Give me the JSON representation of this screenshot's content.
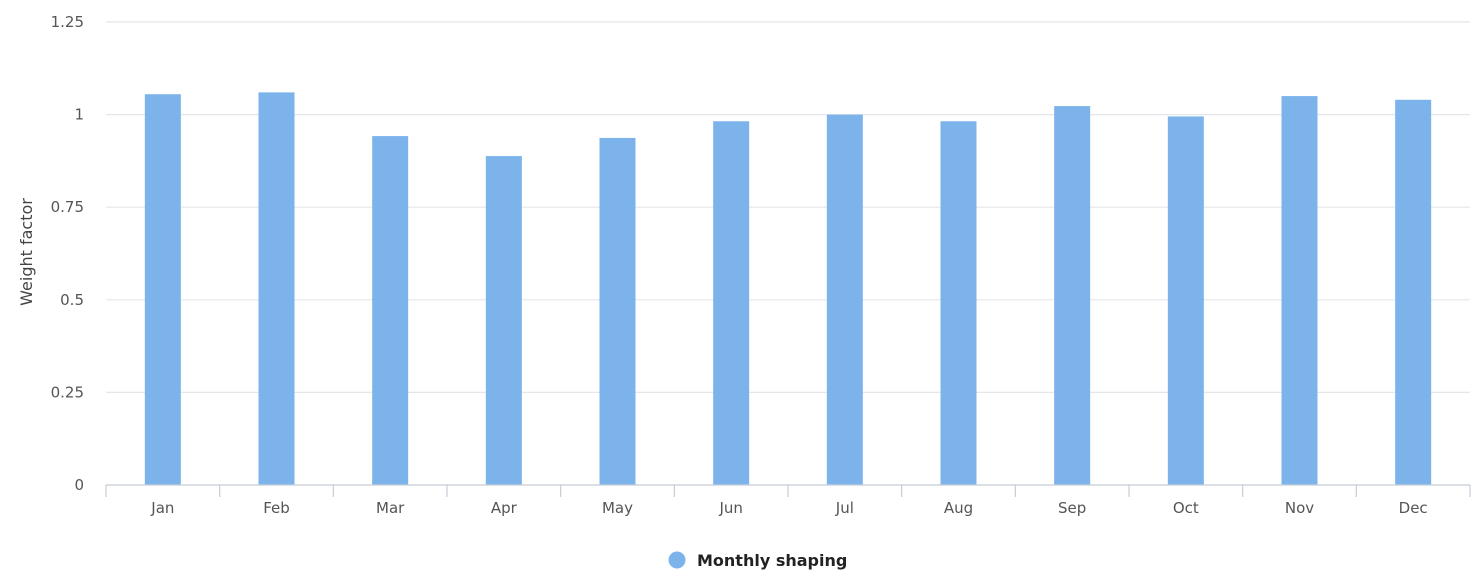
{
  "chart_data": {
    "type": "bar",
    "ylabel": "Weight factor",
    "ylim": [
      0,
      1.25
    ],
    "yticks": [
      "0",
      "0.25",
      "0.5",
      "0.75",
      "1",
      "1.25"
    ],
    "categories": [
      "Jan",
      "Feb",
      "Mar",
      "Apr",
      "May",
      "Jun",
      "Jul",
      "Aug",
      "Sep",
      "Oct",
      "Nov",
      "Dec"
    ],
    "series": [
      {
        "name": "Monthly shaping",
        "color": "#7cb3ea",
        "values": [
          1.055,
          1.06,
          0.942,
          0.888,
          0.937,
          0.982,
          1.0,
          0.982,
          1.023,
          0.995,
          1.05,
          1.04
        ]
      }
    ],
    "grid": true,
    "legend": "bottom-center"
  }
}
